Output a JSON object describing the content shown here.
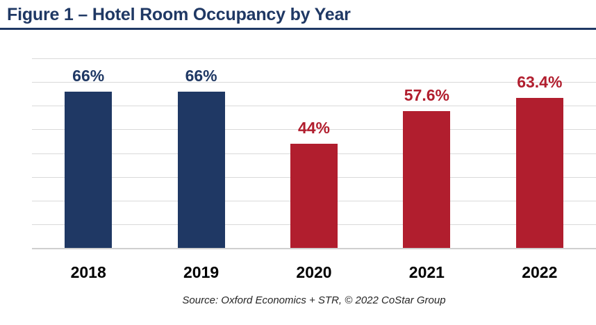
{
  "figure": {
    "title": "Figure 1 – Hotel Room Occupancy by Year",
    "source": "Source: Oxford Economics + STR, © 2022 CoStar Group"
  },
  "colors": {
    "navy": "#1F3864",
    "red": "#B11E2E",
    "title_text": "#1F3864",
    "gridline": "#D9D9D9",
    "baseline": "#CFCFCF",
    "year_label": "#000000",
    "source_text": "#262626",
    "background": "#FFFFFF"
  },
  "chart_data": {
    "type": "bar",
    "title": "Figure 1 – Hotel Room Occupancy by Year",
    "categories": [
      "2018",
      "2019",
      "2020",
      "2021",
      "2022"
    ],
    "values": [
      66,
      66,
      44,
      57.6,
      63.4
    ],
    "value_labels": [
      "66%",
      "66%",
      "44%",
      "57.6%",
      "63.4%"
    ],
    "bar_colors": [
      "#1F3864",
      "#1F3864",
      "#B11E2E",
      "#B11E2E",
      "#B11E2E"
    ],
    "label_colors": [
      "#1F3864",
      "#1F3864",
      "#B11E2E",
      "#B11E2E",
      "#B11E2E"
    ],
    "xlabel": "",
    "ylabel": "",
    "ylim": [
      0,
      80
    ],
    "grid": true,
    "gridline_step": 10,
    "y_tick_labels_visible": false,
    "legend_position": "none",
    "value_label_position": "outside-end",
    "source": "Source: Oxford Economics + STR, © 2022 CoStar Group"
  }
}
